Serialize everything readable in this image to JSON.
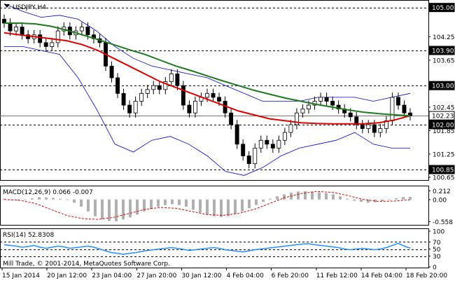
{
  "chart_data": [
    {
      "type": "candlestick",
      "title": "USDJPY,H4",
      "ylim": [
        100.6,
        105.12
      ],
      "x_tick_labels": [
        "15 Jan 2014",
        "20 Jan 12:00",
        "23 Jan 04:00",
        "27 Jan 20:00",
        "30 Jan 12:00",
        "4 Feb 04:00",
        "6 Feb 20:00",
        "11 Feb 12:00",
        "14 Feb 04:00",
        "18 Feb 20:00"
      ],
      "y_tick_labels": [
        "105.00",
        "104.25",
        "103.90",
        "103.65",
        "103.00",
        "102.45",
        "102.23",
        "102.00",
        "101.85",
        "101.25",
        "100.85",
        "100.65"
      ],
      "price_levels": [
        {
          "value": 105.0,
          "label": "105.00"
        },
        {
          "value": 103.9,
          "label": "103.90"
        },
        {
          "value": 103.0,
          "label": "103.00"
        },
        {
          "value": 102.0,
          "label": "102.00"
        },
        {
          "value": 100.85,
          "label": "100.85"
        }
      ],
      "current_price": {
        "value": 102.23,
        "label": "102.23"
      },
      "close_series": [
        104.6,
        104.4,
        104.5,
        104.3,
        104.2,
        104.3,
        104.1,
        104.0,
        104.1,
        104.4,
        104.5,
        104.3,
        104.4,
        104.5,
        104.3,
        104.2,
        104.1,
        103.5,
        103.2,
        102.8,
        102.5,
        102.3,
        102.6,
        102.8,
        102.9,
        103.0,
        102.9,
        103.1,
        103.3,
        103.0,
        102.5,
        102.3,
        102.6,
        102.7,
        102.8,
        102.7,
        102.6,
        102.3,
        102.0,
        101.5,
        101.2,
        101.0,
        101.4,
        101.6,
        101.5,
        101.4,
        101.6,
        101.8,
        102.0,
        102.3,
        102.4,
        102.5,
        102.6,
        102.7,
        102.6,
        102.5,
        102.4,
        102.3,
        102.2,
        102.0,
        101.9,
        102.0,
        101.8,
        101.9,
        102.1,
        102.7,
        102.5,
        102.3,
        102.23
      ],
      "moving_averages": [
        {
          "color": "#e00000",
          "values": [
            104.35,
            104.3,
            104.25,
            104.2,
            104.15,
            104.05,
            103.9,
            103.7,
            103.5,
            103.3,
            103.1,
            102.95,
            102.8,
            102.65,
            102.5,
            102.35,
            102.25,
            102.15,
            102.1,
            102.05,
            102.03,
            102.02,
            102.02,
            102.02,
            102.05,
            102.12,
            102.23
          ]
        },
        {
          "color": "#1f7a1f",
          "values": [
            104.6,
            104.6,
            104.58,
            104.52,
            104.42,
            104.3,
            104.18,
            104.05,
            103.92,
            103.8,
            103.65,
            103.5,
            103.38,
            103.25,
            103.12,
            103.0,
            102.88,
            102.78,
            102.68,
            102.6,
            102.52,
            102.45,
            102.38,
            102.32,
            102.28,
            102.25,
            102.23
          ]
        }
      ],
      "bollinger": {
        "color": "#0000cc",
        "upper": [
          105.1,
          104.9,
          104.75,
          104.8,
          104.7,
          104.4,
          104.0,
          103.7,
          103.5,
          103.4,
          103.3,
          103.2,
          103.0,
          102.8,
          102.6,
          102.6,
          102.6,
          102.7,
          102.7,
          102.7,
          102.6,
          102.7,
          102.8
        ],
        "lower": [
          104.0,
          104.0,
          103.9,
          103.8,
          103.2,
          102.4,
          101.5,
          101.3,
          101.6,
          101.7,
          101.5,
          101.2,
          100.8,
          100.7,
          100.9,
          101.2,
          101.4,
          101.5,
          101.6,
          101.8,
          101.5,
          101.4,
          101.4
        ]
      },
      "copyright": "Mill Trade, © 2001-2014, MetaQuotes Software Corp."
    },
    {
      "type": "histogram",
      "title": "MACD(12,26,9) 0.066 -0.007",
      "y_tick_labels": [
        "0.212",
        "0.00",
        "-0.558"
      ],
      "ylim": [
        -0.62,
        0.26
      ],
      "values": [
        0.02,
        -0.01,
        -0.03,
        0.0,
        0.03,
        0.06,
        0.05,
        0.04,
        0.02,
        0.0,
        -0.08,
        -0.18,
        -0.3,
        -0.42,
        -0.5,
        -0.54,
        -0.55,
        -0.5,
        -0.45,
        -0.38,
        -0.3,
        -0.24,
        -0.18,
        -0.14,
        -0.12,
        -0.14,
        -0.18,
        -0.26,
        -0.33,
        -0.38,
        -0.42,
        -0.44,
        -0.42,
        -0.36,
        -0.3,
        -0.22,
        -0.14,
        -0.06,
        0.02,
        0.08,
        0.13,
        0.17,
        0.2,
        0.21,
        0.2,
        0.18,
        0.16,
        0.13,
        0.08,
        0.02,
        -0.03,
        -0.06,
        -0.08,
        -0.07,
        -0.04,
        0.0,
        0.03,
        0.06,
        0.066
      ],
      "signal": [
        0.0,
        -0.02,
        -0.1,
        -0.25,
        -0.4,
        -0.48,
        -0.5,
        -0.45,
        -0.35,
        -0.25,
        -0.2,
        -0.22,
        -0.3,
        -0.38,
        -0.4,
        -0.35,
        -0.25,
        -0.1,
        0.05,
        0.15,
        0.2,
        0.18,
        0.1,
        0.0,
        -0.05,
        -0.04,
        -0.007
      ],
      "signal_color": "#e00000",
      "histogram_color": "#b0b0b0"
    },
    {
      "type": "line",
      "title": "RSI(14) 52.8308",
      "y_tick_labels": [
        "100",
        "70",
        "50",
        "30",
        "0"
      ],
      "ylim": [
        0,
        100
      ],
      "levels": [
        70,
        50,
        30
      ],
      "color": "#1e90ff",
      "values": [
        62,
        60,
        58,
        55,
        57,
        60,
        55,
        52,
        55,
        58,
        56,
        52,
        54,
        56,
        58,
        55,
        50,
        45,
        40,
        38,
        35,
        38,
        40,
        43,
        46,
        48,
        50,
        52,
        54,
        52,
        49,
        46,
        48,
        50,
        52,
        54,
        52,
        48,
        46,
        44,
        42,
        45,
        48,
        50,
        52,
        54,
        56,
        58,
        60,
        62,
        64,
        65,
        62,
        60,
        58,
        56,
        54,
        50,
        48,
        50,
        52,
        50,
        48,
        50,
        54,
        60,
        66,
        58,
        52.8308
      ]
    }
  ]
}
